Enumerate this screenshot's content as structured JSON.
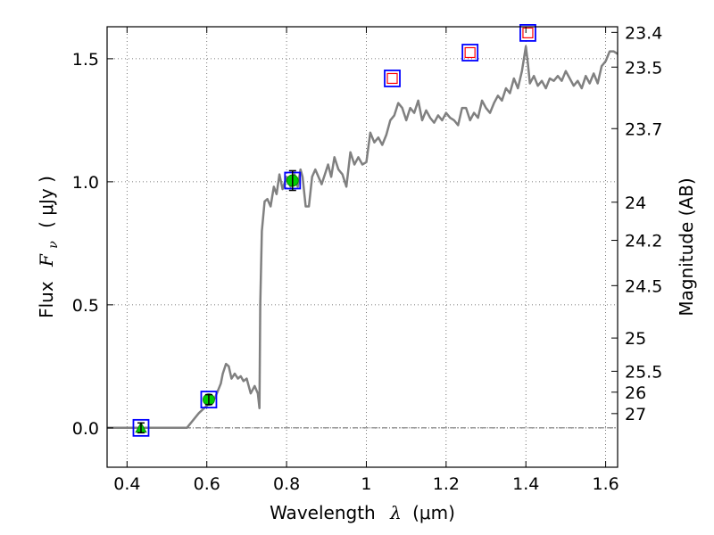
{
  "chart_data": {
    "type": "line",
    "title": "",
    "xlabel": "Wavelength",
    "xlabel_math": "λ",
    "xlabel_unit": "(μm)",
    "ylabel": "Flux",
    "ylabel_math": "F",
    "ylabel_math_sub": "ν",
    "ylabel_unit": "( μJy )",
    "y2label": "Magnitude (AB)",
    "xlim": [
      0.35,
      1.63
    ],
    "ylim": [
      -0.16,
      1.63
    ],
    "grid": true,
    "grid_style": "dotted",
    "x_ticks": [
      {
        "value": 0.4,
        "label": "0.4"
      },
      {
        "value": 0.6,
        "label": "0.6"
      },
      {
        "value": 0.8,
        "label": "0.8"
      },
      {
        "value": 1.0,
        "label": "1"
      },
      {
        "value": 1.2,
        "label": "1.2"
      },
      {
        "value": 1.4,
        "label": "1.4"
      },
      {
        "value": 1.6,
        "label": "1.6"
      }
    ],
    "y_ticks": [
      {
        "value": 0.0,
        "label": "0.0"
      },
      {
        "value": 0.5,
        "label": "0.5"
      },
      {
        "value": 1.0,
        "label": "1.0"
      },
      {
        "value": 1.5,
        "label": "1.5"
      }
    ],
    "magnitude_ticks": [
      {
        "value": 1.607,
        "label": "23.4"
      },
      {
        "value": 1.466,
        "label": "23.5"
      },
      {
        "value": 1.216,
        "label": "23.7"
      },
      {
        "value": 0.917,
        "label": "24"
      },
      {
        "value": 0.762,
        "label": "24.2"
      },
      {
        "value": 0.578,
        "label": "24.5"
      },
      {
        "value": 0.365,
        "label": "25"
      },
      {
        "value": 0.23,
        "label": "25.5"
      },
      {
        "value": 0.145,
        "label": "26"
      },
      {
        "value": 0.058,
        "label": "27"
      }
    ],
    "zero_line": {
      "y": 0.0,
      "style": "dashdot"
    },
    "series": [
      {
        "color": "#808080",
        "x": [
          0.35,
          0.55,
          0.565,
          0.58,
          0.6,
          0.62,
          0.635,
          0.64,
          0.648,
          0.655,
          0.662,
          0.67,
          0.678,
          0.685,
          0.692,
          0.7,
          0.71,
          0.72,
          0.728,
          0.732,
          0.734,
          0.738,
          0.745,
          0.752,
          0.76,
          0.768,
          0.775,
          0.782,
          0.79,
          0.8,
          0.81,
          0.82,
          0.828,
          0.835,
          0.84,
          0.848,
          0.856,
          0.864,
          0.872,
          0.88,
          0.888,
          0.896,
          0.904,
          0.912,
          0.92,
          0.93,
          0.94,
          0.95,
          0.96,
          0.97,
          0.98,
          0.99,
          1.0,
          1.01,
          1.02,
          1.03,
          1.04,
          1.05,
          1.06,
          1.07,
          1.08,
          1.09,
          1.1,
          1.11,
          1.12,
          1.13,
          1.14,
          1.15,
          1.16,
          1.17,
          1.18,
          1.19,
          1.2,
          1.21,
          1.22,
          1.23,
          1.24,
          1.25,
          1.26,
          1.27,
          1.28,
          1.29,
          1.3,
          1.31,
          1.32,
          1.33,
          1.34,
          1.35,
          1.36,
          1.37,
          1.38,
          1.39,
          1.395,
          1.4,
          1.405,
          1.41,
          1.42,
          1.43,
          1.44,
          1.45,
          1.46,
          1.47,
          1.48,
          1.49,
          1.5,
          1.51,
          1.52,
          1.53,
          1.54,
          1.55,
          1.56,
          1.57,
          1.58,
          1.59,
          1.6,
          1.61,
          1.62,
          1.63
        ],
        "values": [
          0.0,
          0.0,
          0.03,
          0.06,
          0.09,
          0.12,
          0.18,
          0.22,
          0.26,
          0.25,
          0.2,
          0.22,
          0.2,
          0.21,
          0.19,
          0.2,
          0.14,
          0.17,
          0.14,
          0.08,
          0.5,
          0.8,
          0.92,
          0.93,
          0.9,
          0.98,
          0.95,
          1.03,
          0.97,
          1.02,
          0.98,
          1.03,
          0.98,
          1.05,
          1.02,
          0.9,
          0.9,
          1.02,
          1.05,
          1.02,
          0.99,
          1.03,
          1.07,
          1.02,
          1.1,
          1.05,
          1.03,
          0.98,
          1.12,
          1.07,
          1.1,
          1.07,
          1.08,
          1.2,
          1.16,
          1.18,
          1.15,
          1.19,
          1.25,
          1.27,
          1.32,
          1.3,
          1.25,
          1.3,
          1.28,
          1.33,
          1.25,
          1.29,
          1.26,
          1.24,
          1.27,
          1.25,
          1.28,
          1.26,
          1.25,
          1.23,
          1.3,
          1.3,
          1.25,
          1.28,
          1.26,
          1.33,
          1.3,
          1.28,
          1.32,
          1.35,
          1.33,
          1.38,
          1.36,
          1.42,
          1.38,
          1.45,
          1.5,
          1.55,
          1.48,
          1.4,
          1.43,
          1.39,
          1.41,
          1.38,
          1.42,
          1.41,
          1.43,
          1.41,
          1.45,
          1.42,
          1.39,
          1.41,
          1.38,
          1.43,
          1.4,
          1.44,
          1.4,
          1.47,
          1.49,
          1.53,
          1.53,
          1.52
        ]
      }
    ],
    "points": [
      {
        "x": 0.435,
        "y": 0.0,
        "err": 0.02,
        "box_color": "#0000ff",
        "marker": "triangle",
        "marker_color": "#00cc00"
      },
      {
        "x": 0.605,
        "y": 0.115,
        "err": 0.02,
        "box_color": "#0000ff",
        "marker": "circle",
        "marker_color": "#00cc00"
      },
      {
        "x": 0.815,
        "y": 1.005,
        "err": 0.04,
        "box_color": "#0000ff",
        "marker": "circle",
        "marker_color": "#00cc00"
      },
      {
        "x": 1.065,
        "y": 1.42,
        "box_color": "#0000ff",
        "marker": "open-square",
        "marker_color": "#ff0000"
      },
      {
        "x": 1.26,
        "y": 1.525,
        "box_color": "#0000ff",
        "marker": "open-square",
        "marker_color": "#ff0000"
      },
      {
        "x": 1.405,
        "y": 1.605,
        "box_color": "#0000ff",
        "marker": "open-square",
        "marker_color": "#ff0000"
      }
    ]
  }
}
